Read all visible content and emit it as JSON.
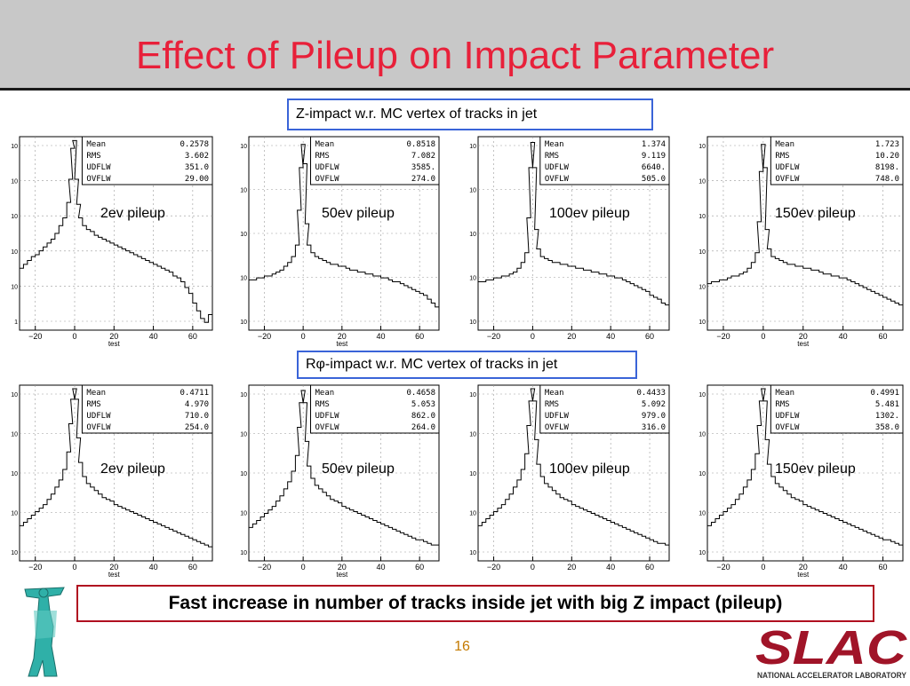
{
  "slide": {
    "title": "Effect of Pileup on Impact Parameter",
    "caption_z": "Z-impact  w.r. MC vertex of tracks in jet",
    "caption_rphi": "Rφ-impact  w.r. MC vertex of tracks in jet",
    "message": "Fast increase in number of tracks inside jet with big Z impact (pileup)",
    "page_number": "16",
    "logo_text": "SLAC",
    "logo_subtext": "NATIONAL ACCELERATOR LABORATORY"
  },
  "colors": {
    "title": "#e8203a",
    "caption_border": "#3a64d8",
    "message_border": "#b01020",
    "logo": "#a01428",
    "page_number": "#c47a00"
  },
  "chart_data": [
    {
      "type": "area",
      "panel": "z-2ev",
      "label": "2ev pileup",
      "xlabel": "test",
      "xticks": [
        -20,
        0,
        20,
        40,
        60
      ],
      "xlim": [
        -28,
        70
      ],
      "ylog": true,
      "yticks": [
        "10",
        "10",
        "10",
        "10",
        "10",
        "1"
      ],
      "stats": {
        "Mean": "0.2578",
        "RMS": "3.602",
        "UDFLW": "351.0",
        "OVFLW": "29.00"
      },
      "x": [
        -27,
        -25,
        -23,
        -21,
        -19,
        -17,
        -15,
        -13,
        -11,
        -9,
        -7,
        -5,
        -3,
        -2,
        -1,
        0,
        1,
        2,
        3,
        5,
        7,
        9,
        11,
        13,
        15,
        17,
        19,
        21,
        23,
        25,
        27,
        29,
        31,
        33,
        35,
        37,
        39,
        41,
        43,
        45,
        47,
        49,
        51,
        53,
        55,
        57,
        59,
        61,
        63,
        65,
        67,
        69
      ],
      "y": [
        0.32,
        0.34,
        0.36,
        0.38,
        0.39,
        0.41,
        0.43,
        0.45,
        0.47,
        0.5,
        0.54,
        0.58,
        0.66,
        0.78,
        0.94,
        0.98,
        0.78,
        0.65,
        0.58,
        0.54,
        0.52,
        0.51,
        0.49,
        0.48,
        0.47,
        0.46,
        0.45,
        0.44,
        0.43,
        0.42,
        0.41,
        0.4,
        0.39,
        0.38,
        0.37,
        0.36,
        0.35,
        0.34,
        0.33,
        0.32,
        0.31,
        0.3,
        0.28,
        0.27,
        0.25,
        0.22,
        0.19,
        0.14,
        0.1,
        0.06,
        0.04,
        0.08
      ]
    },
    {
      "type": "area",
      "panel": "z-50ev",
      "label": "50ev pileup",
      "xlabel": "test",
      "xticks": [
        -20,
        0,
        20,
        40,
        60
      ],
      "xlim": [
        -28,
        70
      ],
      "ylog": true,
      "yticks": [
        "10",
        "10",
        "10",
        "10",
        "10"
      ],
      "stats": {
        "Mean": "0.8518",
        "RMS": "7.082",
        "UDFLW": "3585.",
        "OVFLW": "274.0"
      },
      "x": [
        -27,
        -25,
        -23,
        -21,
        -19,
        -17,
        -15,
        -13,
        -11,
        -9,
        -7,
        -5,
        -3,
        -2,
        -1,
        0,
        1,
        2,
        3,
        5,
        7,
        9,
        11,
        13,
        15,
        17,
        19,
        21,
        23,
        25,
        27,
        29,
        31,
        33,
        35,
        37,
        39,
        41,
        43,
        45,
        47,
        49,
        51,
        53,
        55,
        57,
        59,
        61,
        63,
        65,
        67,
        69
      ],
      "y": [
        0.26,
        0.26,
        0.27,
        0.27,
        0.28,
        0.28,
        0.29,
        0.3,
        0.31,
        0.33,
        0.35,
        0.38,
        0.44,
        0.62,
        0.84,
        0.96,
        0.86,
        0.55,
        0.44,
        0.4,
        0.38,
        0.37,
        0.36,
        0.35,
        0.34,
        0.34,
        0.33,
        0.33,
        0.32,
        0.31,
        0.31,
        0.3,
        0.3,
        0.29,
        0.29,
        0.28,
        0.28,
        0.27,
        0.27,
        0.26,
        0.25,
        0.25,
        0.24,
        0.23,
        0.22,
        0.21,
        0.2,
        0.19,
        0.18,
        0.16,
        0.14,
        0.12
      ]
    },
    {
      "type": "area",
      "panel": "z-100ev",
      "label": "100ev pileup",
      "xlabel": "",
      "xticks": [
        -20,
        0,
        20,
        40,
        60
      ],
      "xlim": [
        -28,
        70
      ],
      "ylog": true,
      "yticks": [
        "10",
        "10",
        "10",
        "10",
        "10"
      ],
      "stats": {
        "Mean": "1.374",
        "RMS": "9.119",
        "UDFLW": "6640.",
        "OVFLW": "505.0"
      },
      "x": [
        -27,
        -25,
        -23,
        -21,
        -19,
        -17,
        -15,
        -13,
        -11,
        -9,
        -7,
        -5,
        -3,
        -2,
        -1,
        0,
        1,
        2,
        3,
        5,
        7,
        9,
        11,
        13,
        15,
        17,
        19,
        21,
        23,
        25,
        27,
        29,
        31,
        33,
        35,
        37,
        39,
        41,
        43,
        45,
        47,
        49,
        51,
        53,
        55,
        57,
        59,
        61,
        63,
        65,
        67,
        69
      ],
      "y": [
        0.25,
        0.25,
        0.26,
        0.26,
        0.27,
        0.27,
        0.28,
        0.28,
        0.29,
        0.3,
        0.32,
        0.35,
        0.4,
        0.58,
        0.84,
        0.97,
        0.84,
        0.52,
        0.42,
        0.38,
        0.37,
        0.36,
        0.35,
        0.35,
        0.34,
        0.34,
        0.33,
        0.33,
        0.32,
        0.32,
        0.31,
        0.31,
        0.3,
        0.3,
        0.29,
        0.29,
        0.28,
        0.28,
        0.27,
        0.27,
        0.26,
        0.25,
        0.24,
        0.23,
        0.22,
        0.21,
        0.2,
        0.18,
        0.17,
        0.16,
        0.14,
        0.13
      ]
    },
    {
      "type": "area",
      "panel": "z-150ev",
      "label": "150ev pileup",
      "xlabel": "test",
      "xticks": [
        -20,
        0,
        20,
        40,
        60
      ],
      "xlim": [
        -28,
        70
      ],
      "ylog": true,
      "yticks": [
        "10",
        "10",
        "10",
        "10",
        "10",
        "10"
      ],
      "stats": {
        "Mean": "1.723",
        "RMS": "10.20",
        "UDFLW": "8198.",
        "OVFLW": "748.0"
      },
      "x": [
        -27,
        -25,
        -23,
        -21,
        -19,
        -17,
        -15,
        -13,
        -11,
        -9,
        -7,
        -5,
        -3,
        -2,
        -1,
        0,
        1,
        2,
        3,
        5,
        7,
        9,
        11,
        13,
        15,
        17,
        19,
        21,
        23,
        25,
        27,
        29,
        31,
        33,
        35,
        37,
        39,
        41,
        43,
        45,
        47,
        49,
        51,
        53,
        55,
        57,
        59,
        61,
        63,
        65,
        67,
        69
      ],
      "y": [
        0.24,
        0.25,
        0.25,
        0.26,
        0.26,
        0.27,
        0.28,
        0.28,
        0.29,
        0.3,
        0.32,
        0.35,
        0.4,
        0.56,
        0.82,
        0.96,
        0.84,
        0.52,
        0.42,
        0.38,
        0.37,
        0.36,
        0.35,
        0.34,
        0.34,
        0.33,
        0.33,
        0.32,
        0.32,
        0.31,
        0.31,
        0.3,
        0.29,
        0.29,
        0.28,
        0.28,
        0.27,
        0.27,
        0.26,
        0.25,
        0.24,
        0.23,
        0.22,
        0.21,
        0.2,
        0.19,
        0.18,
        0.17,
        0.16,
        0.15,
        0.14,
        0.13
      ]
    },
    {
      "type": "area",
      "panel": "rphi-2ev",
      "label": "2ev pileup",
      "xlabel": "test",
      "xticks": [
        -20,
        0,
        20,
        40,
        60
      ],
      "xlim": [
        -28,
        70
      ],
      "ylog": true,
      "yticks": [
        "10",
        "10",
        "10",
        "10",
        "10"
      ],
      "stats": {
        "Mean": "0.4711",
        "RMS": "4.970",
        "UDFLW": "710.0",
        "OVFLW": "254.0"
      },
      "x": [
        -27,
        -25,
        -23,
        -21,
        -19,
        -17,
        -15,
        -13,
        -11,
        -9,
        -7,
        -5,
        -3,
        -2,
        -1,
        0,
        1,
        2,
        3,
        5,
        7,
        9,
        11,
        13,
        15,
        17,
        19,
        21,
        23,
        25,
        27,
        29,
        31,
        33,
        35,
        37,
        39,
        41,
        43,
        45,
        47,
        49,
        51,
        53,
        55,
        57,
        59,
        61,
        63,
        65,
        67,
        69
      ],
      "y": [
        0.2,
        0.22,
        0.24,
        0.26,
        0.28,
        0.3,
        0.32,
        0.35,
        0.38,
        0.42,
        0.46,
        0.52,
        0.62,
        0.78,
        0.92,
        0.98,
        0.92,
        0.7,
        0.56,
        0.48,
        0.44,
        0.42,
        0.4,
        0.38,
        0.36,
        0.35,
        0.34,
        0.32,
        0.31,
        0.3,
        0.29,
        0.28,
        0.27,
        0.26,
        0.25,
        0.24,
        0.23,
        0.22,
        0.21,
        0.2,
        0.19,
        0.18,
        0.17,
        0.16,
        0.15,
        0.14,
        0.13,
        0.12,
        0.11,
        0.1,
        0.09,
        0.08
      ]
    },
    {
      "type": "area",
      "panel": "rphi-50ev",
      "label": "50ev pileup",
      "xlabel": "test",
      "xticks": [
        -20,
        0,
        20,
        40,
        60
      ],
      "xlim": [
        -28,
        70
      ],
      "ylog": true,
      "yticks": [
        "10",
        "10",
        "10",
        "10",
        "10"
      ],
      "stats": {
        "Mean": "0.4658",
        "RMS": "5.053",
        "UDFLW": "862.0",
        "OVFLW": "264.0"
      },
      "x": [
        -27,
        -25,
        -23,
        -21,
        -19,
        -17,
        -15,
        -13,
        -11,
        -9,
        -7,
        -5,
        -3,
        -2,
        -1,
        0,
        1,
        2,
        3,
        5,
        7,
        9,
        11,
        13,
        15,
        17,
        19,
        21,
        23,
        25,
        27,
        29,
        31,
        33,
        35,
        37,
        39,
        41,
        43,
        45,
        47,
        49,
        51,
        53,
        55,
        57,
        59,
        61,
        63,
        65,
        67,
        69
      ],
      "y": [
        0.19,
        0.21,
        0.23,
        0.25,
        0.27,
        0.29,
        0.31,
        0.34,
        0.37,
        0.41,
        0.45,
        0.51,
        0.6,
        0.76,
        0.9,
        0.97,
        0.9,
        0.68,
        0.54,
        0.47,
        0.43,
        0.41,
        0.39,
        0.37,
        0.35,
        0.34,
        0.33,
        0.31,
        0.3,
        0.29,
        0.28,
        0.27,
        0.26,
        0.25,
        0.24,
        0.23,
        0.22,
        0.21,
        0.2,
        0.19,
        0.18,
        0.17,
        0.16,
        0.15,
        0.14,
        0.13,
        0.12,
        0.12,
        0.11,
        0.1,
        0.09,
        0.09
      ]
    },
    {
      "type": "area",
      "panel": "rphi-100ev",
      "label": "100ev pileup",
      "xlabel": "",
      "xticks": [
        -20,
        0,
        20,
        40,
        60
      ],
      "xlim": [
        -28,
        70
      ],
      "ylog": true,
      "yticks": [
        "10",
        "10",
        "10",
        "10",
        "10"
      ],
      "stats": {
        "Mean": "0.4433",
        "RMS": "5.092",
        "UDFLW": "979.0",
        "OVFLW": "316.0"
      },
      "x": [
        -27,
        -25,
        -23,
        -21,
        -19,
        -17,
        -15,
        -13,
        -11,
        -9,
        -7,
        -5,
        -3,
        -2,
        -1,
        0,
        1,
        2,
        3,
        5,
        7,
        9,
        11,
        13,
        15,
        17,
        19,
        21,
        23,
        25,
        27,
        29,
        31,
        33,
        35,
        37,
        39,
        41,
        43,
        45,
        47,
        49,
        51,
        53,
        55,
        57,
        59,
        61,
        63,
        65,
        67,
        69
      ],
      "y": [
        0.2,
        0.22,
        0.24,
        0.26,
        0.28,
        0.3,
        0.32,
        0.35,
        0.38,
        0.42,
        0.46,
        0.52,
        0.61,
        0.77,
        0.91,
        0.98,
        0.91,
        0.69,
        0.55,
        0.48,
        0.44,
        0.42,
        0.4,
        0.38,
        0.36,
        0.35,
        0.34,
        0.32,
        0.31,
        0.3,
        0.29,
        0.28,
        0.27,
        0.26,
        0.25,
        0.24,
        0.23,
        0.22,
        0.21,
        0.2,
        0.19,
        0.18,
        0.17,
        0.16,
        0.15,
        0.14,
        0.13,
        0.12,
        0.11,
        0.1,
        0.1,
        0.09
      ]
    },
    {
      "type": "area",
      "panel": "rphi-150ev",
      "label": "150ev pileup",
      "xlabel": "test",
      "xticks": [
        -20,
        0,
        20,
        40,
        60
      ],
      "xlim": [
        -28,
        70
      ],
      "ylog": true,
      "yticks": [
        "10",
        "10",
        "10",
        "10",
        "10"
      ],
      "stats": {
        "Mean": "0.4991",
        "RMS": "5.481",
        "UDFLW": "1302.",
        "OVFLW": "358.0"
      },
      "x": [
        -27,
        -25,
        -23,
        -21,
        -19,
        -17,
        -15,
        -13,
        -11,
        -9,
        -7,
        -5,
        -3,
        -2,
        -1,
        0,
        1,
        2,
        3,
        5,
        7,
        9,
        11,
        13,
        15,
        17,
        19,
        21,
        23,
        25,
        27,
        29,
        31,
        33,
        35,
        37,
        39,
        41,
        43,
        45,
        47,
        49,
        51,
        53,
        55,
        57,
        59,
        61,
        63,
        65,
        67,
        69
      ],
      "y": [
        0.2,
        0.22,
        0.24,
        0.26,
        0.28,
        0.3,
        0.32,
        0.35,
        0.38,
        0.42,
        0.46,
        0.52,
        0.61,
        0.77,
        0.91,
        0.98,
        0.91,
        0.69,
        0.55,
        0.48,
        0.44,
        0.42,
        0.4,
        0.38,
        0.36,
        0.35,
        0.34,
        0.32,
        0.31,
        0.3,
        0.29,
        0.28,
        0.27,
        0.26,
        0.25,
        0.24,
        0.23,
        0.22,
        0.21,
        0.2,
        0.19,
        0.18,
        0.17,
        0.16,
        0.15,
        0.14,
        0.13,
        0.12,
        0.12,
        0.11,
        0.1,
        0.09
      ]
    }
  ]
}
